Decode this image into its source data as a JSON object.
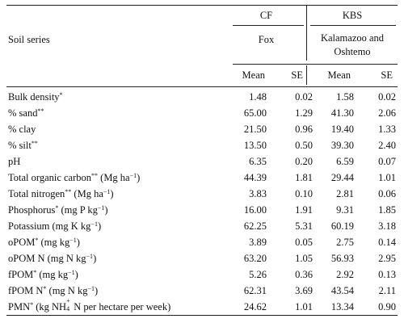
{
  "header": {
    "soil_series_label": "Soil series",
    "site1": "CF",
    "site2": "KBS",
    "series1": "Fox",
    "series2_line1": "Kalamazoo and",
    "series2_line2": "Oshtemo",
    "col_mean": "Mean",
    "col_se": "SE"
  },
  "rows": [
    {
      "pre": "Bulk density",
      "sup": "*",
      "post": "",
      "cf_mean": "1.48",
      "cf_se": "0.02",
      "kbs_mean": "1.58",
      "kbs_se": "0.02"
    },
    {
      "pre": "% sand",
      "sup": "**",
      "post": "",
      "cf_mean": "65.00",
      "cf_se": "1.29",
      "kbs_mean": "41.30",
      "kbs_se": "2.06"
    },
    {
      "pre": "% clay",
      "sup": "",
      "post": "",
      "cf_mean": "21.50",
      "cf_se": "0.96",
      "kbs_mean": "19.40",
      "kbs_se": "1.33"
    },
    {
      "pre": "% silt",
      "sup": "**",
      "post": "",
      "cf_mean": "13.50",
      "cf_se": "0.50",
      "kbs_mean": "39.30",
      "kbs_se": "2.40"
    },
    {
      "pre": "pH",
      "sup": "",
      "post": "",
      "cf_mean": "6.35",
      "cf_se": "0.20",
      "kbs_mean": "6.59",
      "kbs_se": "0.07"
    },
    {
      "pre": "Total organic carbon",
      "sup": "**",
      "post": " (Mg ha",
      "sup2": "−1",
      "tail": ")",
      "cf_mean": "44.39",
      "cf_se": "1.81",
      "kbs_mean": "29.44",
      "kbs_se": "1.01"
    },
    {
      "pre": "Total nitrogen",
      "sup": "**",
      "post": " (Mg ha",
      "sup2": "−1",
      "tail": ")",
      "cf_mean": "3.83",
      "cf_se": "0.10",
      "kbs_mean": "2.81",
      "kbs_se": "0.06"
    },
    {
      "pre": "Phosphorus",
      "sup": "*",
      "post": " (mg P kg",
      "sup2": "−1",
      "tail": ")",
      "cf_mean": "16.00",
      "cf_se": "1.91",
      "kbs_mean": "9.31",
      "kbs_se": "1.85"
    },
    {
      "pre": "Potassium (mg K kg",
      "sup": "−1",
      "post": ")",
      "cf_mean": "62.25",
      "cf_se": "5.31",
      "kbs_mean": "60.19",
      "kbs_se": "3.18"
    },
    {
      "pre": "oPOM",
      "sup": "*",
      "post": " (mg kg",
      "sup2": "−1",
      "tail": ")",
      "cf_mean": "3.89",
      "cf_se": "0.05",
      "kbs_mean": "2.75",
      "kbs_se": "0.14"
    },
    {
      "pre": "oPOM N (mg N kg",
      "sup": "−1",
      "post": ")",
      "cf_mean": "63.20",
      "cf_se": "1.05",
      "kbs_mean": "56.93",
      "kbs_se": "2.95"
    },
    {
      "pre": "fPOM",
      "sup": "*",
      "post": " (mg kg",
      "sup2": "−1",
      "tail": ")",
      "cf_mean": "5.26",
      "cf_se": "0.36",
      "kbs_mean": "2.92",
      "kbs_se": "0.13"
    },
    {
      "pre": "fPOM N",
      "sup": "*",
      "post": " (mg N kg",
      "sup2": "−1",
      "tail": ")",
      "cf_mean": "62.31",
      "cf_se": "3.69",
      "kbs_mean": "43.54",
      "kbs_se": "2.11"
    },
    {
      "pre": "PMN",
      "sup": "*",
      "post": " (kg NH",
      "nh4": true,
      "tail": " N per hectare per week)",
      "cf_mean": "24.62",
      "cf_se": "1.01",
      "kbs_mean": "13.34",
      "kbs_se": "0.90"
    }
  ]
}
